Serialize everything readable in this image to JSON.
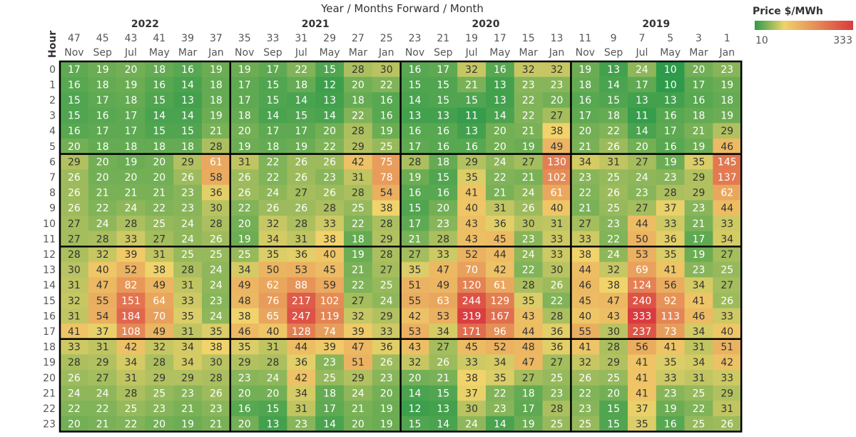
{
  "chart_data": {
    "type": "heatmap",
    "title": "Year / Months Forward / Month",
    "ylabel": "Hour",
    "legend": {
      "title": "Price $/MWh",
      "min": 10,
      "max": 333,
      "min_label": "10",
      "max_label": "333",
      "placement": "top-right"
    },
    "colors": {
      "low": "#2e9b4a",
      "mid": "#f0d36a",
      "high": "#d93a3f",
      "border": "#000000",
      "text_dark": "#333333",
      "text_light": "#ffffff"
    },
    "years": [
      "2022",
      "2021",
      "2020",
      "2019"
    ],
    "months_forward": [
      "47",
      "45",
      "43",
      "41",
      "39",
      "37",
      "35",
      "33",
      "31",
      "29",
      "27",
      "25",
      "23",
      "21",
      "19",
      "17",
      "15",
      "13",
      "11",
      "9",
      "7",
      "5",
      "3",
      "1"
    ],
    "months": [
      "Nov",
      "Sep",
      "Jul",
      "May",
      "Mar",
      "Jan",
      "Nov",
      "Sep",
      "Jul",
      "May",
      "Mar",
      "Jan",
      "Nov",
      "Sep",
      "Jul",
      "May",
      "Mar",
      "Jan",
      "Nov",
      "Sep",
      "Jul",
      "May",
      "Mar",
      "Jan"
    ],
    "hours": [
      "0",
      "1",
      "2",
      "3",
      "4",
      "5",
      "6",
      "7",
      "8",
      "9",
      "10",
      "11",
      "12",
      "13",
      "14",
      "15",
      "16",
      "17",
      "18",
      "19",
      "20",
      "21",
      "22",
      "23"
    ],
    "values": [
      [
        17,
        19,
        20,
        18,
        16,
        19,
        19,
        17,
        22,
        15,
        28,
        30,
        16,
        17,
        32,
        16,
        32,
        32,
        19,
        13,
        24,
        10,
        20,
        23
      ],
      [
        16,
        18,
        19,
        16,
        14,
        18,
        17,
        15,
        18,
        12,
        20,
        22,
        15,
        15,
        21,
        13,
        23,
        23,
        18,
        14,
        17,
        10,
        17,
        19
      ],
      [
        15,
        17,
        18,
        15,
        13,
        18,
        17,
        15,
        14,
        13,
        18,
        16,
        14,
        15,
        15,
        13,
        22,
        20,
        16,
        15,
        13,
        13,
        16,
        18
      ],
      [
        15,
        16,
        17,
        14,
        14,
        19,
        18,
        14,
        15,
        14,
        22,
        16,
        13,
        13,
        11,
        14,
        22,
        27,
        17,
        18,
        11,
        16,
        18,
        19
      ],
      [
        16,
        17,
        17,
        15,
        15,
        21,
        20,
        17,
        17,
        20,
        28,
        19,
        16,
        16,
        13,
        20,
        21,
        38,
        20,
        22,
        14,
        17,
        21,
        29
      ],
      [
        20,
        18,
        18,
        18,
        18,
        28,
        19,
        18,
        19,
        22,
        29,
        25,
        17,
        16,
        16,
        20,
        19,
        49,
        21,
        26,
        20,
        16,
        19,
        46
      ],
      [
        29,
        20,
        19,
        20,
        29,
        61,
        31,
        22,
        26,
        26,
        42,
        75,
        28,
        18,
        29,
        24,
        27,
        130,
        34,
        31,
        27,
        19,
        35,
        145
      ],
      [
        26,
        20,
        20,
        20,
        26,
        58,
        26,
        22,
        26,
        23,
        31,
        78,
        19,
        15,
        35,
        22,
        21,
        102,
        23,
        25,
        24,
        23,
        29,
        137
      ],
      [
        26,
        21,
        21,
        21,
        23,
        36,
        26,
        24,
        27,
        26,
        28,
        54,
        16,
        16,
        41,
        21,
        24,
        61,
        22,
        26,
        23,
        28,
        29,
        62
      ],
      [
        26,
        22,
        24,
        22,
        23,
        30,
        22,
        26,
        26,
        28,
        25,
        38,
        15,
        20,
        40,
        31,
        26,
        40,
        21,
        25,
        27,
        37,
        23,
        44
      ],
      [
        27,
        24,
        28,
        25,
        24,
        28,
        20,
        32,
        28,
        33,
        22,
        28,
        17,
        23,
        43,
        36,
        30,
        31,
        27,
        23,
        44,
        33,
        21,
        33
      ],
      [
        27,
        28,
        33,
        27,
        24,
        26,
        19,
        34,
        31,
        38,
        18,
        29,
        21,
        28,
        43,
        45,
        23,
        33,
        33,
        22,
        50,
        36,
        17,
        34
      ],
      [
        28,
        32,
        39,
        31,
        25,
        25,
        25,
        35,
        36,
        40,
        19,
        28,
        27,
        33,
        52,
        44,
        24,
        33,
        38,
        24,
        53,
        35,
        19,
        27
      ],
      [
        30,
        40,
        52,
        38,
        28,
        24,
        34,
        50,
        53,
        45,
        21,
        27,
        35,
        47,
        70,
        42,
        22,
        30,
        44,
        32,
        69,
        41,
        23,
        25
      ],
      [
        31,
        47,
        82,
        49,
        31,
        24,
        49,
        62,
        88,
        59,
        22,
        25,
        51,
        49,
        120,
        61,
        28,
        26,
        46,
        38,
        124,
        56,
        34,
        27
      ],
      [
        32,
        55,
        151,
        64,
        33,
        23,
        48,
        76,
        217,
        102,
        27,
        24,
        55,
        63,
        244,
        129,
        35,
        22,
        45,
        47,
        240,
        92,
        41,
        26
      ],
      [
        31,
        54,
        184,
        70,
        35,
        24,
        38,
        65,
        247,
        119,
        32,
        29,
        42,
        53,
        319,
        167,
        43,
        28,
        40,
        43,
        333,
        113,
        46,
        33
      ],
      [
        41,
        37,
        108,
        49,
        31,
        35,
        46,
        40,
        128,
        74,
        39,
        33,
        53,
        34,
        171,
        96,
        44,
        36,
        55,
        30,
        237,
        73,
        34,
        40
      ],
      [
        33,
        31,
        42,
        32,
        34,
        38,
        35,
        31,
        44,
        39,
        47,
        36,
        43,
        27,
        45,
        52,
        48,
        36,
        41,
        28,
        56,
        41,
        31,
        51
      ],
      [
        28,
        29,
        34,
        28,
        34,
        30,
        29,
        28,
        36,
        23,
        51,
        26,
        32,
        26,
        33,
        34,
        47,
        27,
        32,
        29,
        41,
        35,
        34,
        42
      ],
      [
        26,
        27,
        31,
        29,
        29,
        28,
        23,
        24,
        42,
        25,
        29,
        23,
        20,
        21,
        38,
        35,
        27,
        25,
        26,
        25,
        41,
        33,
        31,
        33
      ],
      [
        24,
        24,
        28,
        25,
        23,
        26,
        20,
        20,
        34,
        18,
        24,
        20,
        14,
        15,
        37,
        22,
        18,
        23,
        22,
        20,
        41,
        23,
        25,
        29
      ],
      [
        22,
        22,
        25,
        23,
        21,
        23,
        16,
        15,
        31,
        17,
        21,
        19,
        12,
        13,
        30,
        23,
        17,
        28,
        23,
        15,
        37,
        19,
        22,
        31
      ],
      [
        20,
        21,
        22,
        20,
        19,
        21,
        20,
        13,
        23,
        14,
        20,
        19,
        15,
        14,
        24,
        14,
        19,
        25,
        25,
        15,
        35,
        16,
        25,
        26
      ]
    ]
  }
}
